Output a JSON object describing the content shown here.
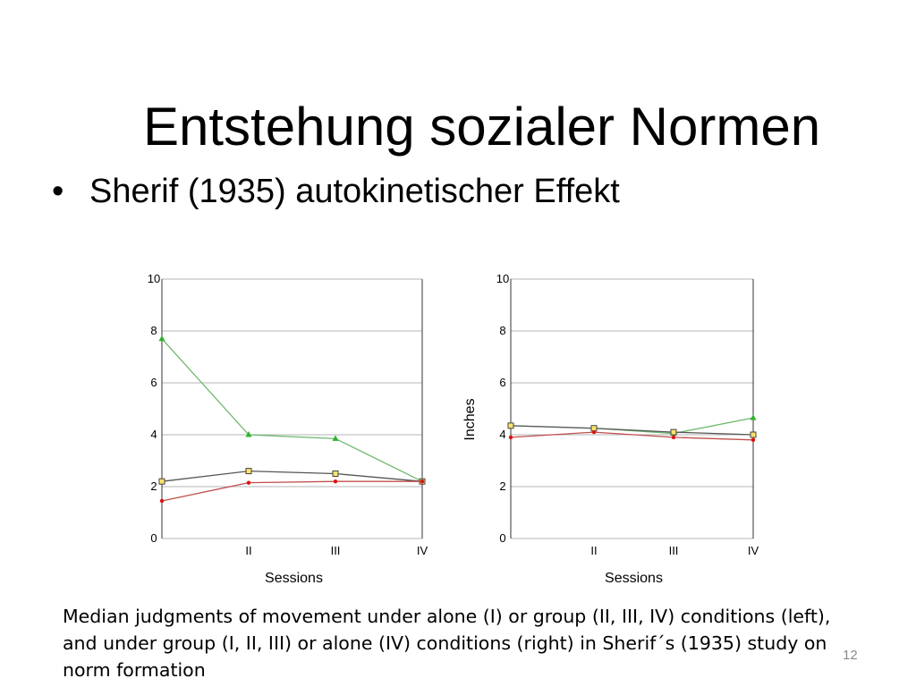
{
  "slide": {
    "title": "Entstehung sozialer Normen",
    "bullet": "Sherif (1935) autokinetischer Effekt",
    "caption": "Median judgments of movement under alone (I) or group (II, III, IV) conditions (left), and under group (I, II, III) or alone (IV) conditions (right) in Sherif´s (1935) study on norm formation",
    "page_number": "12"
  },
  "colors": {
    "green": "#6db86d",
    "green_marker": "#2fb12f",
    "gray": "#555555",
    "red": "#c0504d",
    "red_marker": "#dd1111",
    "yellow_marker": "#ffe36b",
    "grid": "#b5b5b5",
    "axis": "#333333"
  },
  "chart_data": [
    {
      "type": "line",
      "categories": [
        "",
        "II",
        "III",
        "IV"
      ],
      "xlabel": "Sessions",
      "ylabel": "",
      "ylim": [
        0,
        10
      ],
      "yticks": [
        0,
        2,
        4,
        6,
        8,
        10
      ],
      "grid": true,
      "series": [
        {
          "color": "green",
          "marker": "triangle",
          "values": [
            7.7,
            4.0,
            3.85,
            2.2
          ]
        },
        {
          "color": "gray",
          "marker": "square",
          "values": [
            2.2,
            2.6,
            2.5,
            2.2
          ]
        },
        {
          "color": "red",
          "marker": "circle",
          "values": [
            1.45,
            2.15,
            2.2,
            2.2
          ]
        }
      ]
    },
    {
      "type": "line",
      "categories": [
        "",
        "II",
        "III",
        "IV"
      ],
      "xlabel": "Sessions",
      "ylabel": "Inches",
      "ylim": [
        0,
        10
      ],
      "yticks": [
        0,
        2,
        4,
        6,
        8,
        10
      ],
      "grid": true,
      "series": [
        {
          "color": "green",
          "marker": "triangle",
          "values": [
            4.35,
            4.25,
            4.05,
            4.65
          ]
        },
        {
          "color": "gray",
          "marker": "square",
          "values": [
            4.35,
            4.25,
            4.1,
            4.0
          ]
        },
        {
          "color": "red",
          "marker": "circle",
          "values": [
            3.9,
            4.1,
            3.9,
            3.8
          ]
        }
      ]
    }
  ]
}
